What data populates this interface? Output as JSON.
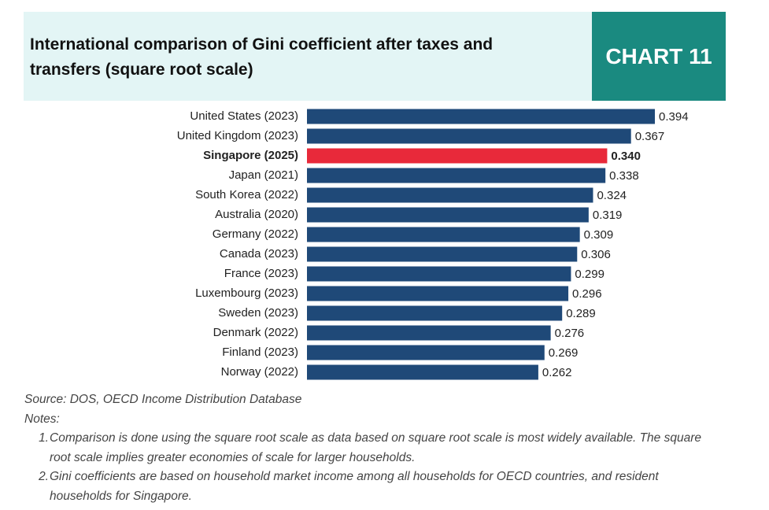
{
  "chart_data": {
    "type": "bar",
    "orientation": "horizontal",
    "title": "International comparison of Gini coefficient after taxes and transfers (square root scale)",
    "badge": "CHART 11",
    "categories": [
      "United States (2023)",
      "United Kingdom (2023)",
      "Singapore (2025)",
      "Japan (2021)",
      "South Korea (2022)",
      "Australia (2020)",
      "Germany (2022)",
      "Canada (2023)",
      "France (2023)",
      "Luxembourg (2023)",
      "Sweden (2023)",
      "Denmark (2022)",
      "Finland (2023)",
      "Norway (2022)"
    ],
    "values": [
      0.394,
      0.367,
      0.34,
      0.338,
      0.324,
      0.319,
      0.309,
      0.306,
      0.299,
      0.296,
      0.289,
      0.276,
      0.269,
      0.262
    ],
    "value_labels": [
      "0.394",
      "0.367",
      "0.340",
      "0.338",
      "0.324",
      "0.319",
      "0.309",
      "0.306",
      "0.299",
      "0.296",
      "0.289",
      "0.276",
      "0.269",
      "0.262"
    ],
    "colors": [
      "#1f4978",
      "#1f4978",
      "#e8293a",
      "#1f4978",
      "#1f4978",
      "#1f4978",
      "#1f4978",
      "#1f4978",
      "#1f4978",
      "#1f4978",
      "#1f4978",
      "#1f4978",
      "#1f4978",
      "#1f4978"
    ],
    "source": "Source: DOS, OECD Income Distribution Database",
    "notes_title": "Notes:",
    "notes": [
      {
        "number": "1.",
        "text": "Comparison is done using the square root scale as data based on square root scale is most widely available. The square root scale implies greater economies of scale for larger households."
      },
      {
        "number": "2.",
        "text": "Gini coefficients are based on household market income among all households for OECD countries, and resident households for Singapore."
      }
    ]
  }
}
